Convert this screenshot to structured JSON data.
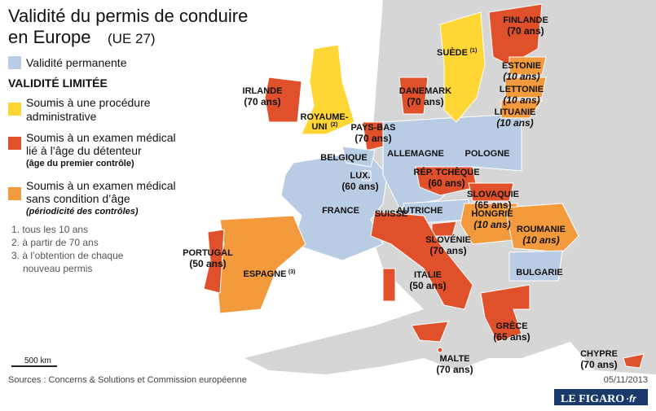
{
  "header": {
    "title_line1": "Validité du permis de conduire",
    "title_line2": "en Europe",
    "title_suffix": "(UE 27)"
  },
  "legend": {
    "permanent": "Validité permanente",
    "limited_heading": "VALIDITÉ LIMITÉE",
    "items": [
      {
        "lines": [
          "Soumis à une procédure",
          "administrative"
        ],
        "note": null
      },
      {
        "lines": [
          "Soumis à un examen médical",
          "lié à l’âge du détenteur"
        ],
        "note": "(âge du premier contrôle)"
      },
      {
        "lines": [
          "Soumis à un examen médical",
          "sans condition d’âge"
        ],
        "note": "(périodicité des contrôles)"
      }
    ],
    "notes": [
      "1. tous les 10 ans",
      "2. à partir de 70 ans",
      "3. à l’obtention de chaque",
      "nouveau permis"
    ]
  },
  "scale": "500 km",
  "labels": [
    {
      "name": "FINLANDE",
      "detail": "(70 ans)"
    },
    {
      "name": "SUÈDE",
      "sup": "(1)"
    },
    {
      "name": "ESTONIE",
      "detail": "(10 ans)"
    },
    {
      "name": "LETTONIE",
      "detail": "(10 ans)"
    },
    {
      "name": "LITUANIE",
      "detail": "(10 ans)"
    },
    {
      "name": "DANEMARK",
      "detail": "(70 ans)"
    },
    {
      "name": "IRLANDE",
      "detail": "(70 ans)"
    },
    {
      "name": "ROYAUME-",
      "name2": "UNI",
      "sup": "(2)"
    },
    {
      "name": "PAYS-BAS",
      "detail": "(70 ans)"
    },
    {
      "name": "BELGIQUE"
    },
    {
      "name": "ALLEMAGNE"
    },
    {
      "name": "POLOGNE"
    },
    {
      "name": "LUX.",
      "detail": "(60 ans)"
    },
    {
      "name": "RÉP. TCHÈQUE",
      "detail": "(60 ans)"
    },
    {
      "name": "SLOVAQUIE",
      "detail": "(65 ans)"
    },
    {
      "name": "FRANCE"
    },
    {
      "name": "SUISSE"
    },
    {
      "name": "AUTRICHE"
    },
    {
      "name": "HONGRIE",
      "detail": "(10 ans)"
    },
    {
      "name": "ROUMANIE",
      "detail": "(10 ans)"
    },
    {
      "name": "SLOVÉNIE",
      "detail": "(70 ans)"
    },
    {
      "name": "PORTUGAL",
      "detail": "(50 ans)"
    },
    {
      "name": "ESPAGNE",
      "sup": "(3)"
    },
    {
      "name": "ITALIE",
      "detail": "(50 ans)"
    },
    {
      "name": "BULGARIE"
    },
    {
      "name": "GRÈCE",
      "detail": "(65 ans)"
    },
    {
      "name": "MALTE",
      "detail": "(70 ans)"
    },
    {
      "name": "CHYPRE",
      "detail": "(70 ans)"
    }
  ],
  "footer": {
    "source": "Sources : Concerns & Solutions et Commission européenne",
    "date": "05/11/2013",
    "logo": "LE FIGARO",
    "logo_suffix": "·fr"
  }
}
